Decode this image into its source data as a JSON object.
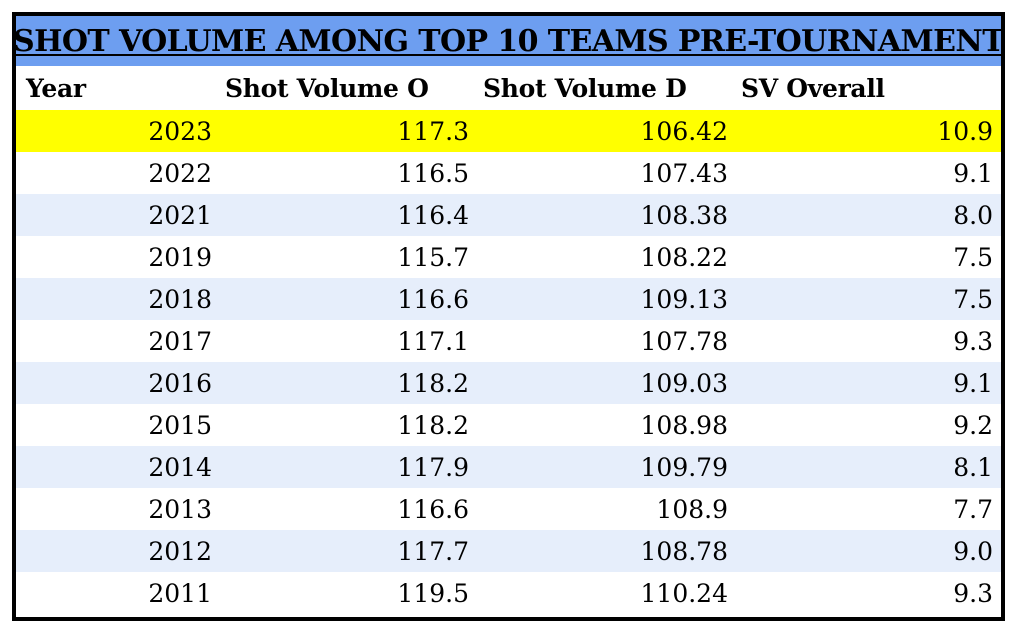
{
  "chart_data": {
    "type": "table",
    "title": "SHOT VOLUME AMONG TOP 10 TEAMS PRE-TOURNAMENT",
    "columns": [
      "Year",
      "Shot Volume O",
      "Shot Volume D",
      "SV Overall"
    ],
    "rows": [
      [
        "2023",
        "117.3",
        "106.42",
        "10.9"
      ],
      [
        "2022",
        "116.5",
        "107.43",
        "9.1"
      ],
      [
        "2021",
        "116.4",
        "108.38",
        "8.0"
      ],
      [
        "2019",
        "115.7",
        "108.22",
        "7.5"
      ],
      [
        "2018",
        "116.6",
        "109.13",
        "7.5"
      ],
      [
        "2017",
        "117.1",
        "107.78",
        "9.3"
      ],
      [
        "2016",
        "118.2",
        "109.03",
        "9.1"
      ],
      [
        "2015",
        "118.2",
        "108.98",
        "9.2"
      ],
      [
        "2014",
        "117.9",
        "109.79",
        "8.1"
      ],
      [
        "2013",
        "116.6",
        "108.9",
        "7.7"
      ],
      [
        "2012",
        "117.7",
        "108.78",
        "9.0"
      ],
      [
        "2011",
        "119.5",
        "110.24",
        "9.3"
      ]
    ],
    "highlighted_row": 0
  },
  "colors": {
    "title_background": "#6d9ef0",
    "highlight_row": "#ffff00",
    "alternate_row": "#e6eefb",
    "border": "#000000"
  }
}
